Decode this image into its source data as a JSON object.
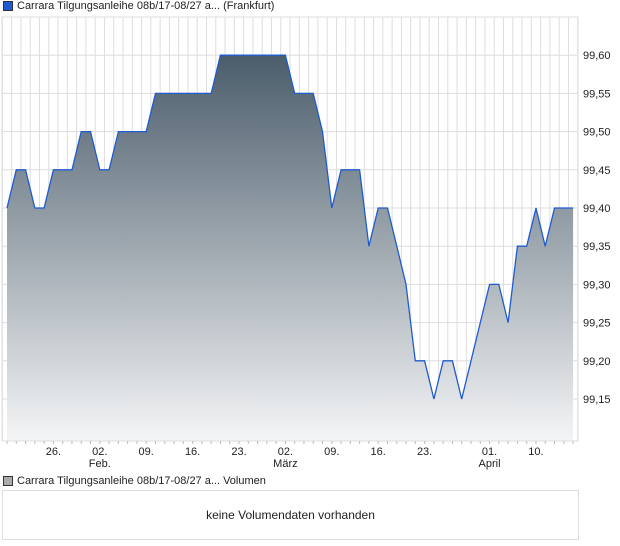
{
  "chart_data": {
    "type": "area",
    "title": "Carrara Tilgungsanleihe 08b/17-08/27 a... (Frankfurt)",
    "series_color": "#1f5bd0",
    "values": [
      99.4,
      99.45,
      99.45,
      99.4,
      99.4,
      99.45,
      99.45,
      99.45,
      99.5,
      99.5,
      99.45,
      99.45,
      99.5,
      99.5,
      99.5,
      99.5,
      99.55,
      99.55,
      99.55,
      99.55,
      99.55,
      99.55,
      99.55,
      99.6,
      99.6,
      99.6,
      99.6,
      99.6,
      99.6,
      99.6,
      99.6,
      99.55,
      99.55,
      99.55,
      99.5,
      99.4,
      99.45,
      99.45,
      99.45,
      99.35,
      99.4,
      99.4,
      99.35,
      99.3,
      99.2,
      99.2,
      99.15,
      99.2,
      99.2,
      99.15,
      99.2,
      99.25,
      99.3,
      99.3,
      99.25,
      99.35,
      99.35,
      99.4,
      99.35,
      99.4,
      99.4,
      99.4
    ],
    "ylim": [
      99.095,
      99.65
    ],
    "yticks": [
      {
        "v": 99.6,
        "label": "99,60"
      },
      {
        "v": 99.55,
        "label": "99,55"
      },
      {
        "v": 99.5,
        "label": "99,50"
      },
      {
        "v": 99.45,
        "label": "99,45"
      },
      {
        "v": 99.4,
        "label": "99,40"
      },
      {
        "v": 99.35,
        "label": "99,35"
      },
      {
        "v": 99.3,
        "label": "99,30"
      },
      {
        "v": 99.25,
        "label": "99,25"
      },
      {
        "v": 99.2,
        "label": "99,20"
      },
      {
        "v": 99.15,
        "label": "99,15"
      }
    ],
    "xticks": [
      {
        "i": 5,
        "label": "26.",
        "month": ""
      },
      {
        "i": 10,
        "label": "02.",
        "month": "Feb."
      },
      {
        "i": 15,
        "label": "09.",
        "month": ""
      },
      {
        "i": 20,
        "label": "16.",
        "month": ""
      },
      {
        "i": 25,
        "label": "23.",
        "month": ""
      },
      {
        "i": 30,
        "label": "02.",
        "month": "März"
      },
      {
        "i": 35,
        "label": "09.",
        "month": ""
      },
      {
        "i": 40,
        "label": "16.",
        "month": ""
      },
      {
        "i": 45,
        "label": "23.",
        "month": ""
      },
      {
        "i": 52,
        "label": "01.",
        "month": "April"
      },
      {
        "i": 57,
        "label": "10.",
        "month": ""
      }
    ],
    "grid": true
  },
  "volume": {
    "legend": "Carrara Tilgungsanleihe 08b/17-08/27 a... Volumen",
    "message": "keine Volumendaten vorhanden"
  }
}
